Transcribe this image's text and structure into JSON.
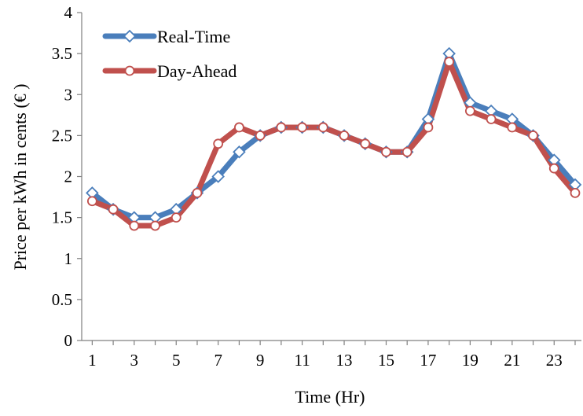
{
  "chart_data": {
    "type": "line",
    "title": "",
    "xlabel": "Time (Hr)",
    "ylabel": "Price per kWh in cents (€ )",
    "x": [
      1,
      2,
      3,
      4,
      5,
      6,
      7,
      8,
      9,
      10,
      11,
      12,
      13,
      14,
      15,
      16,
      17,
      18,
      19,
      20,
      21,
      22,
      23,
      24
    ],
    "xticks": [
      "1",
      "3",
      "5",
      "7",
      "9",
      "11",
      "13",
      "15",
      "17",
      "19",
      "21",
      "23"
    ],
    "xlim": [
      0.5,
      24.3
    ],
    "ylim": [
      0,
      4
    ],
    "yticks": [
      "0",
      "0.5",
      "1",
      "1.5",
      "2",
      "2.5",
      "3",
      "3.5",
      "4"
    ],
    "grid": false,
    "legend_position": "top-left",
    "series": [
      {
        "name": "Real-Time",
        "color": "#4a7ebb",
        "marker": "diamond",
        "values": [
          1.8,
          1.6,
          1.5,
          1.5,
          1.6,
          1.8,
          2.0,
          2.3,
          2.5,
          2.6,
          2.6,
          2.6,
          2.5,
          2.4,
          2.3,
          2.3,
          2.7,
          3.5,
          2.9,
          2.8,
          2.7,
          2.5,
          2.2,
          1.9
        ]
      },
      {
        "name": "Day-Ahead",
        "color": "#c0504d",
        "marker": "circle",
        "values": [
          1.7,
          1.6,
          1.4,
          1.4,
          1.5,
          1.8,
          2.4,
          2.6,
          2.5,
          2.6,
          2.6,
          2.6,
          2.5,
          2.4,
          2.3,
          2.3,
          2.6,
          3.4,
          2.8,
          2.7,
          2.6,
          2.5,
          2.1,
          1.8
        ]
      }
    ]
  }
}
